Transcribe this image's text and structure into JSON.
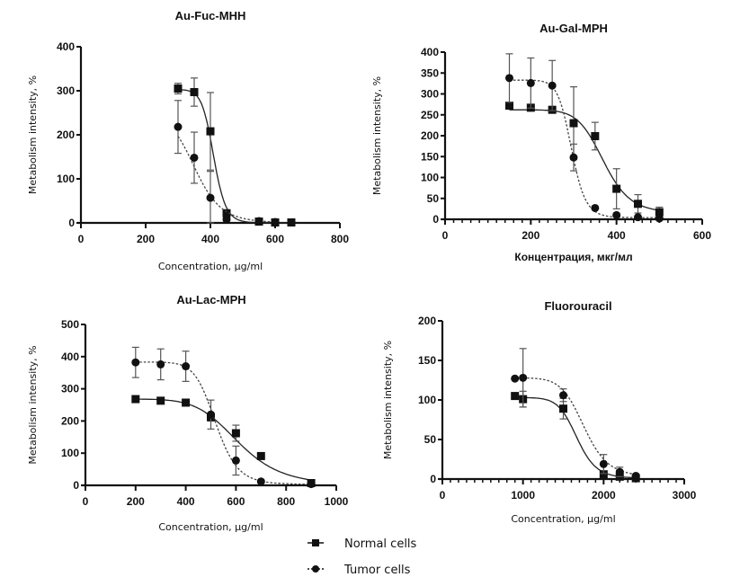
{
  "legend": {
    "position": "bottom-center",
    "entries": [
      {
        "name": "Normal cells",
        "marker": "square",
        "line": "solid"
      },
      {
        "name": "Tumor cells",
        "marker": "circle",
        "line": "dotted"
      }
    ]
  },
  "chart_data": [
    {
      "type": "line",
      "title": "Au-Fuc-MHH",
      "xlabel": "Concentration, µg/ml",
      "ylabel": "Metabolism intensity, %",
      "xlim": [
        0,
        800
      ],
      "ylim": [
        0,
        400
      ],
      "xticks": [
        0,
        200,
        400,
        600,
        800
      ],
      "yticks": [
        0,
        100,
        200,
        300,
        400
      ],
      "grid": false,
      "series": [
        {
          "name": "Normal cells",
          "marker": "square",
          "line": "solid",
          "x": [
            300,
            350,
            400,
            450,
            550,
            600,
            650
          ],
          "y": [
            305,
            297,
            208,
            22,
            3,
            1,
            1
          ],
          "err": [
            12,
            32,
            88,
            5,
            2,
            1,
            1
          ],
          "fit": {
            "top": 303,
            "bottom": 0,
            "ec50": 410,
            "hill": 22
          }
        },
        {
          "name": "Tumor cells",
          "marker": "circle",
          "line": "dotted",
          "x": [
            300,
            350,
            400,
            450,
            550,
            600
          ],
          "y": [
            218,
            148,
            57,
            8,
            4,
            2
          ],
          "err": [
            60,
            58,
            60,
            4,
            3,
            2
          ],
          "fit": {
            "top": 240,
            "bottom": 0,
            "ec50": 355,
            "hill": 9
          }
        }
      ]
    },
    {
      "type": "line",
      "title": "Au-Gal-MPH",
      "xlabel": "Концентрация, мкг/мл",
      "ylabel": "Metabolism intensity, %",
      "xlim": [
        0,
        600
      ],
      "ylim": [
        0,
        400
      ],
      "xticks": [
        0,
        200,
        400,
        600
      ],
      "yticks": [
        0,
        50,
        100,
        150,
        200,
        250,
        300,
        350,
        400
      ],
      "grid": false,
      "series": [
        {
          "name": "Normal cells",
          "marker": "square",
          "line": "solid",
          "x": [
            150,
            200,
            250,
            300,
            350,
            400,
            450,
            500
          ],
          "y": [
            272,
            267,
            262,
            230,
            199,
            73,
            37,
            17
          ],
          "err": [
            5,
            5,
            5,
            87,
            33,
            48,
            22,
            12
          ],
          "fit": {
            "top": 262,
            "bottom": 15,
            "ec50": 370,
            "hill": 12
          }
        },
        {
          "name": "Tumor cells",
          "marker": "circle",
          "line": "dotted",
          "x": [
            150,
            200,
            250,
            300,
            350,
            400,
            450,
            500
          ],
          "y": [
            338,
            326,
            320,
            148,
            27,
            10,
            5,
            2
          ],
          "err": [
            58,
            60,
            60,
            32,
            3,
            3,
            2,
            1
          ],
          "fit": {
            "top": 333,
            "bottom": 4,
            "ec50": 295,
            "hill": 18
          }
        }
      ]
    },
    {
      "type": "line",
      "title": "Au-Lac-MPH",
      "xlabel": "Concentration, µg/ml",
      "ylabel": "Metabolism intensity, %",
      "xlim": [
        0,
        1000
      ],
      "ylim": [
        0,
        500
      ],
      "xticks": [
        0,
        200,
        400,
        600,
        800,
        1000
      ],
      "yticks": [
        0,
        100,
        200,
        300,
        400,
        500
      ],
      "grid": false,
      "series": [
        {
          "name": "Normal cells",
          "marker": "square",
          "line": "solid",
          "x": [
            200,
            300,
            400,
            500,
            600,
            700,
            900
          ],
          "y": [
            268,
            263,
            257,
            212,
            162,
            91,
            7
          ],
          "err": [
            4,
            4,
            4,
            12,
            25,
            6,
            2
          ],
          "fit": {
            "top": 268,
            "bottom": 0,
            "ec50": 610,
            "hill": 7
          }
        },
        {
          "name": "Tumor cells",
          "marker": "circle",
          "line": "dotted",
          "x": [
            200,
            300,
            400,
            500,
            600,
            700,
            900
          ],
          "y": [
            382,
            376,
            370,
            220,
            77,
            12,
            4
          ],
          "err": [
            47,
            48,
            47,
            45,
            45,
            4,
            2
          ],
          "fit": {
            "top": 383,
            "bottom": 3,
            "ec50": 520,
            "hill": 12
          }
        }
      ]
    },
    {
      "type": "line",
      "title": "Fluorouracil",
      "xlabel": "Concentration, µg/ml",
      "ylabel": "Metabolism intensity, %",
      "xlim": [
        0,
        3000
      ],
      "ylim": [
        0,
        200
      ],
      "xticks": [
        0,
        1000,
        2000,
        3000
      ],
      "yticks": [
        0,
        50,
        100,
        150,
        200
      ],
      "grid": false,
      "series": [
        {
          "name": "Normal cells",
          "marker": "square",
          "line": "solid",
          "x": [
            900,
            1000,
            1500,
            2000,
            2200,
            2400
          ],
          "y": [
            105,
            101,
            89,
            6,
            3,
            1
          ],
          "err": [
            3,
            10,
            13,
            2,
            2,
            1
          ],
          "fit": {
            "top": 103,
            "bottom": 1,
            "ec50": 1670,
            "hill": 14
          }
        },
        {
          "name": "Tumor cells",
          "marker": "circle",
          "line": "dotted",
          "x": [
            900,
            1000,
            1500,
            2000,
            2200,
            2400
          ],
          "y": [
            127,
            128,
            106,
            19,
            9,
            4
          ],
          "err": [
            3,
            37,
            8,
            12,
            6,
            2
          ],
          "fit": {
            "top": 128,
            "bottom": 3,
            "ec50": 1760,
            "hill": 12
          }
        }
      ]
    }
  ]
}
